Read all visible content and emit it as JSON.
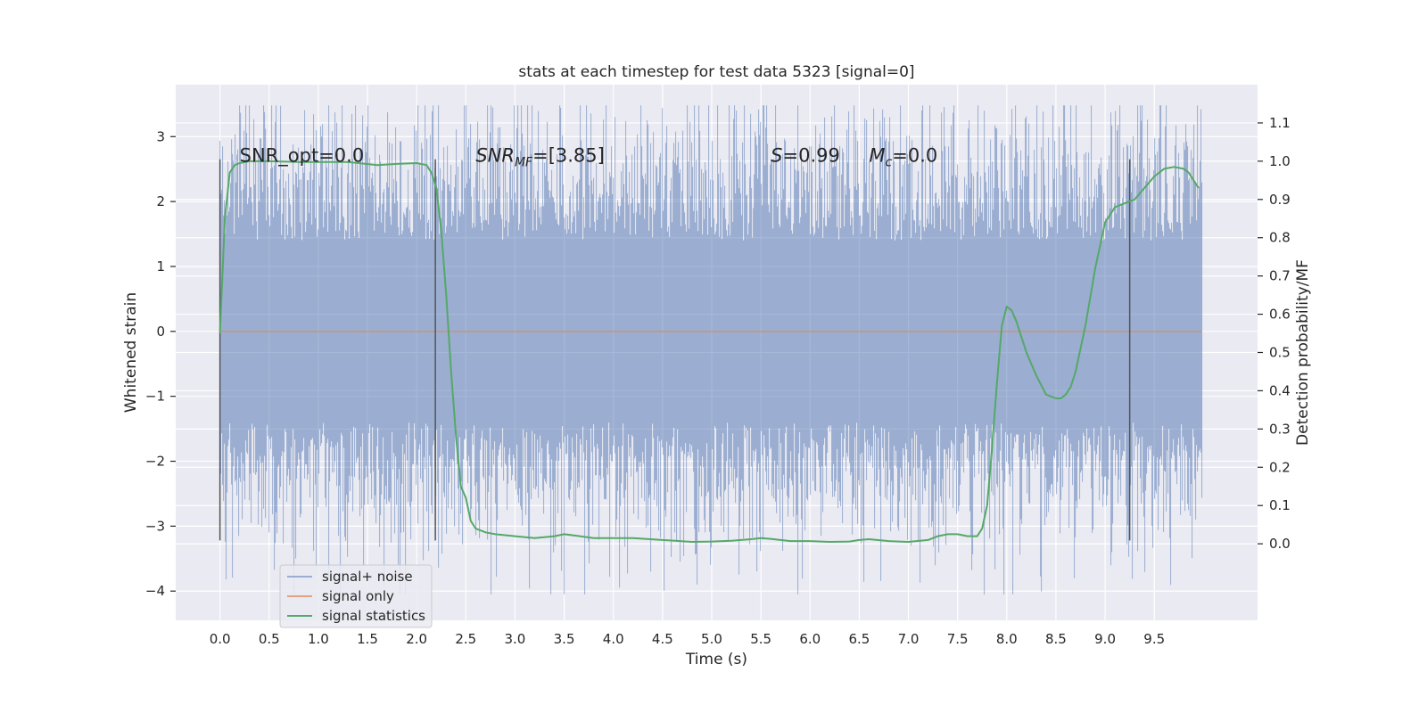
{
  "chart_data": {
    "type": "line",
    "title": "stats at each timestep for test data 5323 [signal=0]",
    "xlabel": "Time (s)",
    "ylabel_left": "Whitened strain",
    "ylabel_right": "Detection probability/MF",
    "xlim": [
      -0.45,
      10.55
    ],
    "ylim_left": [
      -4.45,
      3.8
    ],
    "ylim_right": [
      -0.2,
      1.2
    ],
    "x_ticks": [
      0.0,
      0.5,
      1.0,
      1.5,
      2.0,
      2.5,
      3.0,
      3.5,
      4.0,
      4.5,
      5.0,
      5.5,
      6.0,
      6.5,
      7.0,
      7.5,
      8.0,
      8.5,
      9.0,
      9.5
    ],
    "x_tick_labels": [
      "0.0",
      "0.5",
      "1.0",
      "1.5",
      "2.0",
      "2.5",
      "3.0",
      "3.5",
      "4.0",
      "4.5",
      "5.0",
      "5.5",
      "6.0",
      "6.5",
      "7.0",
      "7.5",
      "8.0",
      "8.5",
      "9.0",
      "9.5"
    ],
    "y_left_ticks": [
      3,
      2,
      1,
      0,
      -1,
      -2,
      -3,
      -4
    ],
    "y_left_tick_labels": [
      "3",
      "2",
      "1",
      "0",
      "−1",
      "−2",
      "−3",
      "−4"
    ],
    "y_right_ticks": [
      1.1,
      1.0,
      0.9,
      0.8,
      0.7,
      0.6,
      0.5,
      0.4,
      0.3,
      0.2,
      0.1,
      0.0
    ],
    "y_right_tick_labels": [
      "1.1",
      "1.0",
      "0.9",
      "0.8",
      "0.7",
      "0.6",
      "0.5",
      "0.4",
      "0.3",
      "0.2",
      "0.1",
      "0.0"
    ],
    "grid": true,
    "legend_position": "lower-left",
    "noise_range": [
      0.0,
      9.98
    ],
    "series": [
      {
        "name": "signal+ noise",
        "axis": "left",
        "color": "#4c72b0",
        "kind": "noise"
      },
      {
        "name": "signal only",
        "axis": "left",
        "color": "#dd8452",
        "kind": "constant",
        "value": 0
      },
      {
        "name": "signal statistics",
        "axis": "right",
        "color": "#55a868",
        "kind": "line",
        "x": [
          0.0,
          0.05,
          0.1,
          0.15,
          0.2,
          0.3,
          0.5,
          0.8,
          1.0,
          1.3,
          1.6,
          1.8,
          2.0,
          2.1,
          2.15,
          2.2,
          2.25,
          2.3,
          2.35,
          2.4,
          2.45,
          2.5,
          2.55,
          2.6,
          2.7,
          2.8,
          3.0,
          3.2,
          3.4,
          3.5,
          3.6,
          3.8,
          4.0,
          4.2,
          4.5,
          4.8,
          5.0,
          5.2,
          5.4,
          5.5,
          5.6,
          5.8,
          6.0,
          6.2,
          6.4,
          6.5,
          6.6,
          6.8,
          7.0,
          7.2,
          7.3,
          7.4,
          7.5,
          7.6,
          7.7,
          7.75,
          7.8,
          7.85,
          7.9,
          7.95,
          8.0,
          8.05,
          8.1,
          8.15,
          8.2,
          8.3,
          8.4,
          8.5,
          8.55,
          8.6,
          8.65,
          8.7,
          8.8,
          8.9,
          9.0,
          9.1,
          9.2,
          9.3,
          9.4,
          9.5,
          9.6,
          9.7,
          9.8,
          9.85,
          9.9,
          9.95
        ],
        "y": [
          0.55,
          0.85,
          0.97,
          0.99,
          0.995,
          1.0,
          1.0,
          0.998,
          0.998,
          0.998,
          0.99,
          0.993,
          0.995,
          0.99,
          0.97,
          0.93,
          0.82,
          0.65,
          0.45,
          0.28,
          0.15,
          0.12,
          0.06,
          0.04,
          0.03,
          0.025,
          0.02,
          0.015,
          0.02,
          0.025,
          0.022,
          0.015,
          0.015,
          0.015,
          0.01,
          0.005,
          0.006,
          0.008,
          0.012,
          0.015,
          0.013,
          0.007,
          0.007,
          0.005,
          0.006,
          0.01,
          0.012,
          0.007,
          0.005,
          0.01,
          0.02,
          0.025,
          0.025,
          0.02,
          0.02,
          0.04,
          0.1,
          0.25,
          0.42,
          0.57,
          0.62,
          0.61,
          0.58,
          0.54,
          0.5,
          0.44,
          0.39,
          0.38,
          0.38,
          0.39,
          0.41,
          0.45,
          0.57,
          0.72,
          0.84,
          0.88,
          0.89,
          0.9,
          0.93,
          0.96,
          0.98,
          0.985,
          0.98,
          0.97,
          0.95,
          0.93
        ]
      }
    ],
    "vertical_lines": [
      {
        "x": 0.0,
        "y_from": -3.22,
        "y_to": 2.65
      },
      {
        "x": 2.19,
        "y_from": -3.22,
        "y_to": 2.65
      },
      {
        "x": 9.25,
        "y_from": -3.22,
        "y_to": 2.65
      }
    ],
    "annotations": [
      {
        "name": "snr-opt",
        "x": 0.2,
        "y": 2.72,
        "text": "SNR_opt=0.0"
      },
      {
        "name": "snr-mf",
        "x": 2.6,
        "y": 2.72,
        "text_italic": "SNR",
        "text_sub": "MF",
        "text_rest": "=[3.85]"
      },
      {
        "name": "s-value",
        "x": 5.6,
        "y": 2.72,
        "text_italic": "S",
        "text_rest": "=0.99"
      },
      {
        "name": "mc-value",
        "x": 6.6,
        "y": 2.72,
        "text_italic": "M",
        "text_sub": "c",
        "text_rest": "=0.0"
      }
    ]
  }
}
